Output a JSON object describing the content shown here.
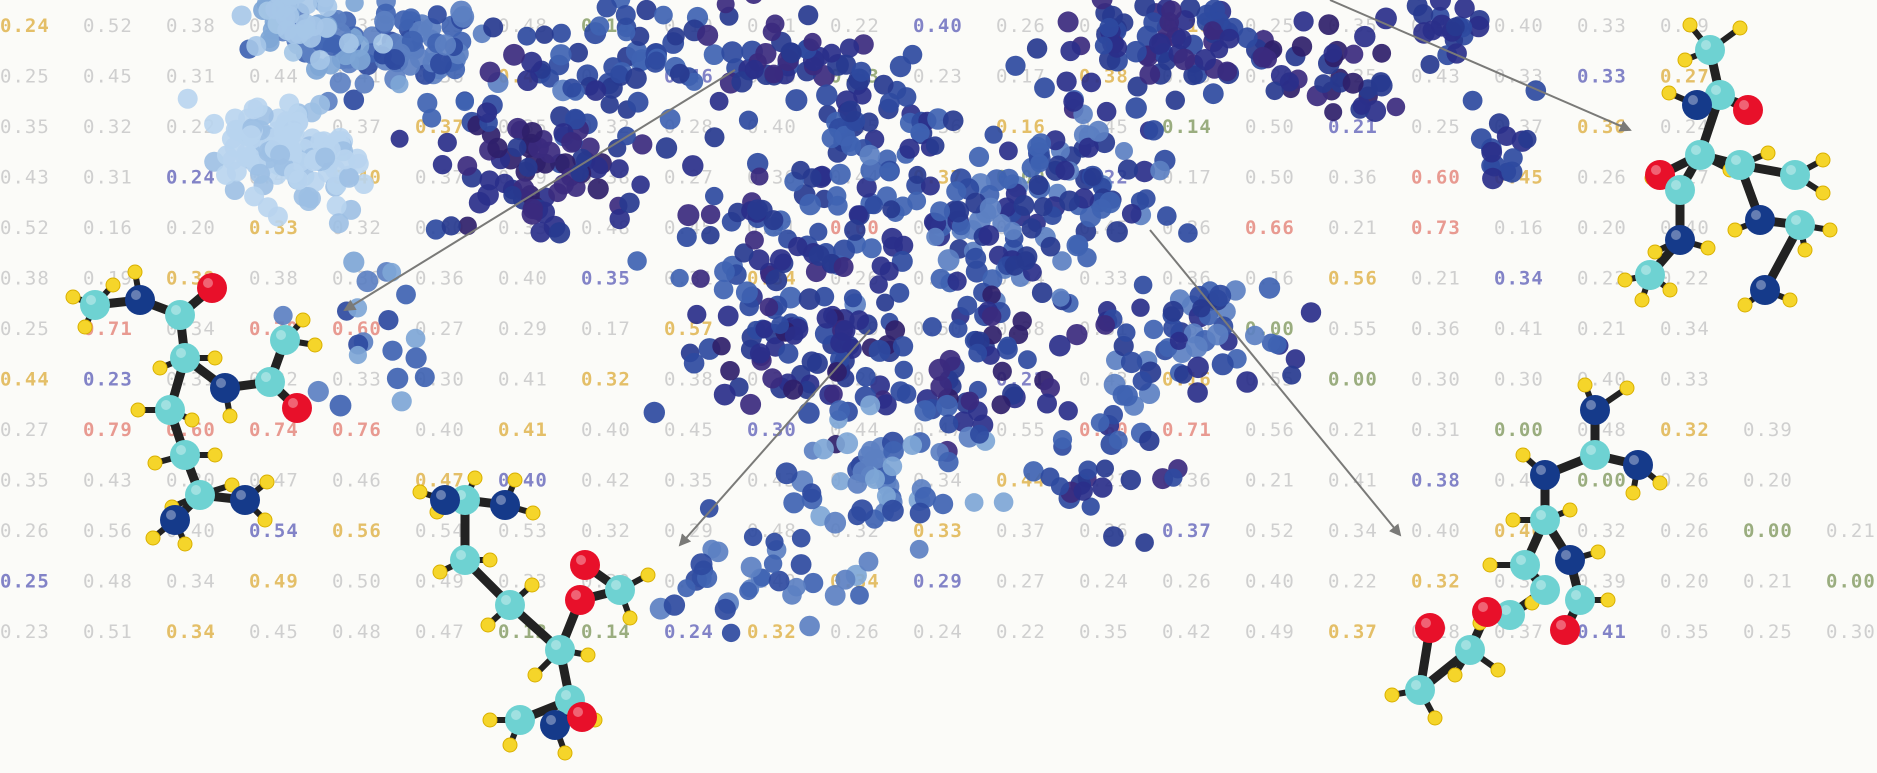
{
  "background_grid": {
    "rows": [
      [
        "0.24",
        "0.52",
        "0.38",
        "0.49",
        "0.32",
        "0.25",
        "0.48",
        "0.13",
        "0.19",
        "0.21",
        "0.22",
        "0.40",
        "0.26",
        "0.36",
        "0.18",
        "0.25",
        "0.35",
        "0.44",
        "0.40",
        "0.33",
        "0.29"
      ],
      [
        "0.25",
        "0.45",
        "0.31",
        "0.44",
        "0.41",
        "0.36",
        "0.46",
        "0.26",
        "0.46",
        "0.26",
        "0.03",
        "0.23",
        "0.17",
        "0.38",
        "0.35",
        "0.20",
        "0.25",
        "0.43",
        "0.33",
        "0.33",
        "0.27"
      ],
      [
        "0.35",
        "0.32",
        "0.22",
        "0.47",
        "0.37",
        "0.37",
        "0.35",
        "0.32",
        "0.28",
        "0.40",
        "0.35",
        "0.36",
        "0.16",
        "0.45",
        "0.14",
        "0.50",
        "0.21",
        "0.25",
        "0.37",
        "0.36",
        "0.24"
      ],
      [
        "0.43",
        "0.31",
        "0.24",
        "0.40",
        "0.40",
        "0.37",
        "0.49",
        "0.38",
        "0.27",
        "0.36",
        "0.44",
        "0.37",
        "0.00",
        "0.22",
        "0.17",
        "0.50",
        "0.36",
        "0.60",
        "0.45",
        "0.26",
        "0.27"
      ],
      [
        "0.52",
        "0.16",
        "0.20",
        "0.33",
        "0.32",
        "0.30",
        "0.33",
        "0.48",
        "0.45",
        "0.21",
        "0.60",
        "0.33",
        "0.31",
        "0.45",
        "0.26",
        "0.66",
        "0.21",
        "0.73",
        "0.16",
        "0.20",
        "0.40"
      ],
      [
        "0.38",
        "0.19",
        "0.39",
        "0.38",
        "0.36",
        "0.36",
        "0.40",
        "0.35",
        "0.31",
        "0.34",
        "0.26",
        "0.34",
        "0.34",
        "0.33",
        "0.36",
        "0.16",
        "0.56",
        "0.21",
        "0.34",
        "0.22",
        "0.22"
      ],
      [
        "0.25",
        "0.71",
        "0.34",
        "0.70",
        "0.60",
        "0.27",
        "0.29",
        "0.17",
        "0.57",
        "0.35",
        "0.39",
        "0.50",
        "0.38",
        "0.31",
        "0.50",
        "0.00",
        "0.55",
        "0.36",
        "0.41",
        "0.21",
        "0.34"
      ],
      [
        "0.44",
        "0.23",
        "0.31",
        "0.32",
        "0.33",
        "0.30",
        "0.41",
        "0.32",
        "0.38",
        "0.34",
        "0.29",
        "0.18",
        "0.21",
        "0.43",
        "0.16",
        "0.55",
        "0.00",
        "0.30",
        "0.30",
        "0.40",
        "0.33"
      ],
      [
        "0.27",
        "0.79",
        "0.60",
        "0.74",
        "0.76",
        "0.40",
        "0.41",
        "0.40",
        "0.45",
        "0.30",
        "0.44",
        "0.47",
        "0.55",
        "0.60",
        "0.71",
        "0.56",
        "0.21",
        "0.31",
        "0.00",
        "0.48",
        "0.32",
        "0.39"
      ],
      [
        "0.35",
        "0.43",
        "0.30",
        "0.47",
        "0.46",
        "0.47",
        "0.40",
        "0.42",
        "0.35",
        "0.43",
        "0.40",
        "0.34",
        "0.44",
        "0.21",
        "0.36",
        "0.21",
        "0.41",
        "0.38",
        "0.48",
        "0.00",
        "0.26",
        "0.20"
      ],
      [
        "0.26",
        "0.56",
        "0.40",
        "0.54",
        "0.56",
        "0.54",
        "0.53",
        "0.32",
        "0.29",
        "0.48",
        "0.32",
        "0.33",
        "0.37",
        "0.36",
        "0.37",
        "0.52",
        "0.34",
        "0.40",
        "0.40",
        "0.32",
        "0.26",
        "0.00",
        "0.21"
      ],
      [
        "0.25",
        "0.48",
        "0.34",
        "0.49",
        "0.50",
        "0.49",
        "0.33",
        "0.30",
        "0.28",
        "0.40",
        "0.34",
        "0.29",
        "0.27",
        "0.24",
        "0.26",
        "0.40",
        "0.22",
        "0.32",
        "0.33",
        "0.39",
        "0.20",
        "0.21",
        "0.00"
      ],
      [
        "0.23",
        "0.51",
        "0.34",
        "0.45",
        "0.48",
        "0.47",
        "0.13",
        "0.14",
        "0.24",
        "0.32",
        "0.26",
        "0.24",
        "0.22",
        "0.35",
        "0.42",
        "0.49",
        "0.37",
        "0.28",
        "0.37",
        "0.41",
        "0.35",
        "0.25",
        "0.30"
      ]
    ],
    "highlight_colors": {
      "low": "#8aa06a",
      "mid": "#e0b550",
      "high": "#e58a80",
      "blue": "#6e6fbf",
      "plain": "#c8c8c8"
    }
  },
  "scatter": {
    "palette": [
      "#2f1f6a",
      "#3b2a7e",
      "#2a2f8a",
      "#27398f",
      "#2e4aa0",
      "#3f63b2",
      "#5c80c2",
      "#7ea6d6",
      "#a5c7e6"
    ]
  },
  "atom_colors": {
    "carbon": "#6ed2d2",
    "nitrogen": "#153a8a",
    "oxygen": "#e8102a",
    "hydrogen": "#f5d52a",
    "bond": "#222222"
  },
  "arrow_color": "#7a7a78"
}
